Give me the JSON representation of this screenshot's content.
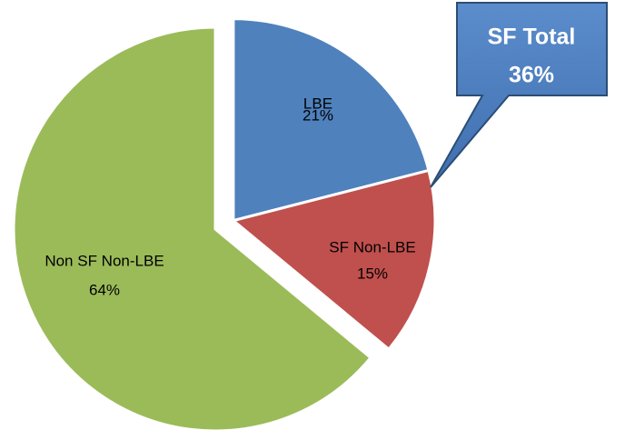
{
  "chart_data": {
    "type": "pie",
    "categories": [
      "LBE",
      "SF Non-LBE",
      "Non SF Non-LBE"
    ],
    "values": [
      21,
      15,
      64
    ],
    "value_labels": [
      "21%",
      "15%",
      "64%"
    ],
    "colors": [
      "#4f81bd",
      "#c0504d",
      "#9bbb59"
    ],
    "exploded": [
      true,
      true,
      false
    ],
    "annotation": {
      "title": "SF Total",
      "label": "36%"
    }
  }
}
